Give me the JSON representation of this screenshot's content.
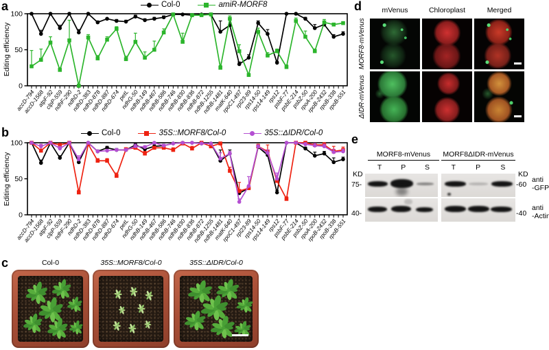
{
  "panels": {
    "a": {
      "label": "a"
    },
    "b": {
      "label": "b"
    },
    "c": {
      "label": "c",
      "pots": [
        "Col-0",
        "35S::MORF8/Col-0",
        "35S::ΔIDR/Col-0"
      ]
    },
    "d": {
      "label": "d",
      "columns": [
        "mVenus",
        "Chloroplast",
        "Merged"
      ],
      "rows": [
        "MORF8-mVenus",
        "ΔIDR-mVenus"
      ]
    },
    "e": {
      "label": "e",
      "groups": [
        "MORF8-mVenus",
        "MORF8ΔIDR-mVenus"
      ],
      "lanes": [
        "T",
        "P",
        "S"
      ],
      "markers": {
        "kd_left": "KD",
        "kd_right": "KD",
        "left_top": "75-",
        "left_bottom": "40-",
        "right_top": "-60",
        "right_bottom": "-40"
      },
      "antibody_top": [
        "anti",
        "-GFP"
      ],
      "antibody_bottom": [
        "anti",
        "-Actin"
      ]
    }
  },
  "chart_data": [
    {
      "id": "a",
      "type": "line",
      "title": "",
      "xlabel": "",
      "ylabel": "Editing efficiency",
      "ylim": [
        0,
        100
      ],
      "yticks": [
        0,
        50,
        100
      ],
      "grid": false,
      "legend_position": "top",
      "categories": [
        "accD-794",
        "accD-1568",
        "atpF-92",
        "clpP-559",
        "ndhF-290",
        "ndhD-2",
        "ndhD-383",
        "ndhD-878",
        "ndhD-887",
        "ndhD-674",
        "petL",
        "ndhG-50",
        "ndhB-149",
        "ndhB-467",
        "ndhB-586",
        "ndhB-746",
        "ndhB-830",
        "ndhB-836",
        "ndhB-872",
        "ndhB-1255",
        "ndhB-1481",
        "matK-640",
        "rpoC1-497",
        "rpl23-89",
        "rps14-50",
        "rps14-149",
        "rps12",
        "psbF-77",
        "psbE-214",
        "psbZ-50",
        "rpoA-200",
        "rpoB-2432",
        "rpoB-338",
        "rpoB-551"
      ],
      "series": [
        {
          "name": "Col-0",
          "color": "#000000",
          "marker": "circle",
          "italic": false,
          "values": [
            100,
            72,
            100,
            80,
            100,
            74,
            100,
            88,
            93,
            90,
            89,
            96,
            91,
            93,
            95,
            99,
            99,
            98,
            99,
            99,
            75,
            84,
            30,
            39,
            87,
            72,
            32,
            100,
            100,
            93,
            80,
            85,
            68,
            72
          ],
          "err": [
            0,
            5,
            0,
            4,
            0,
            4,
            0,
            2,
            0,
            2,
            2,
            2,
            2,
            2,
            2,
            0,
            2,
            0,
            0,
            0,
            15,
            7,
            3,
            4,
            3,
            6,
            2,
            0,
            0,
            2,
            5,
            4,
            3,
            3
          ]
        },
        {
          "name": "amiR-MORF8",
          "color": "#2cb52c",
          "marker": "square",
          "italic": true,
          "values": [
            27,
            36,
            60,
            22,
            63,
            0,
            67,
            38,
            64,
            79,
            37,
            61,
            39,
            50,
            74,
            99,
            61,
            98,
            98,
            99,
            25,
            93,
            48,
            15,
            75,
            42,
            48,
            26,
            90,
            68,
            48,
            88,
            85,
            87
          ],
          "err": [
            22,
            15,
            8,
            3,
            28,
            2,
            4,
            4,
            4,
            3,
            4,
            12,
            8,
            12,
            5,
            0,
            12,
            0,
            0,
            0,
            3,
            4,
            9,
            2,
            5,
            4,
            3,
            3,
            4,
            8,
            3,
            4,
            0,
            0
          ]
        }
      ]
    },
    {
      "id": "b",
      "type": "line",
      "title": "",
      "xlabel": "",
      "ylabel": "Editing efficiency",
      "ylim": [
        0,
        100
      ],
      "yticks": [
        0,
        50,
        100
      ],
      "grid": false,
      "legend_position": "top",
      "categories": [
        "accD-794",
        "accD-1568",
        "atpF-92",
        "clpP-559",
        "ndhF-290",
        "ndhD-2",
        "ndhD-383",
        "ndhD-878",
        "ndhD-887",
        "ndhD-674",
        "petL",
        "ndhG-50",
        "ndhB-149",
        "ndhB-467",
        "ndhB-586",
        "ndhB-746",
        "ndhB-830",
        "ndhB-836",
        "ndhB-872",
        "ndhB-1255",
        "ndhB-1481",
        "matK-640",
        "rpoC1-497",
        "rpl23-89",
        "rps14-50",
        "rps14-149",
        "rps12",
        "psbF-77",
        "psbE-214",
        "psbZ-50",
        "rpoA-200",
        "rpoB-2432",
        "rpoB-338",
        "rpoB-551"
      ],
      "series": [
        {
          "name": "Col-0",
          "color": "#000000",
          "marker": "circle",
          "italic": false,
          "values": [
            100,
            72,
            100,
            79,
            100,
            73,
            100,
            88,
            93,
            90,
            90,
            97,
            91,
            95,
            96,
            99,
            100,
            100,
            99,
            99,
            75,
            85,
            30,
            37,
            94,
            83,
            31,
            100,
            100,
            92,
            82,
            85,
            73,
            77
          ],
          "err": [
            0,
            4,
            0,
            3,
            0,
            4,
            0,
            2,
            2,
            2,
            2,
            2,
            2,
            2,
            2,
            0,
            0,
            0,
            0,
            0,
            15,
            5,
            3,
            3,
            2,
            4,
            3,
            0,
            0,
            2,
            5,
            3,
            6,
            3
          ]
        },
        {
          "name": "35S::MORF8/Col-0",
          "color": "#ee2211",
          "marker": "square",
          "italic": true,
          "values": [
            100,
            89,
            100,
            97,
            100,
            31,
            98,
            75,
            75,
            54,
            91,
            93,
            85,
            93,
            93,
            90,
            99,
            92,
            100,
            95,
            99,
            61,
            33,
            37,
            95,
            88,
            47,
            22,
            100,
            100,
            97,
            97,
            88,
            90
          ],
          "err": [
            0,
            8,
            0,
            2,
            0,
            3,
            2,
            3,
            3,
            4,
            2,
            3,
            3,
            2,
            2,
            3,
            0,
            3,
            0,
            3,
            0,
            5,
            12,
            4,
            3,
            9,
            4,
            3,
            0,
            0,
            2,
            5,
            7,
            4
          ]
        },
        {
          "name": "35S::ΔIDR/Col-0",
          "color": "#b44fd2",
          "marker": "circle",
          "italic": true,
          "values": [
            100,
            95,
            100,
            92,
            100,
            77,
            100,
            88,
            89,
            90,
            90,
            95,
            94,
            100,
            96,
            99,
            100,
            100,
            99,
            99,
            78,
            85,
            18,
            40,
            95,
            86,
            50,
            100,
            100,
            98,
            96,
            95,
            87,
            88
          ],
          "err": [
            0,
            3,
            0,
            3,
            0,
            5,
            0,
            2,
            2,
            2,
            2,
            3,
            2,
            0,
            2,
            0,
            0,
            0,
            0,
            0,
            8,
            3,
            4,
            13,
            2,
            4,
            8,
            0,
            0,
            2,
            3,
            3,
            4,
            3
          ]
        }
      ]
    }
  ]
}
